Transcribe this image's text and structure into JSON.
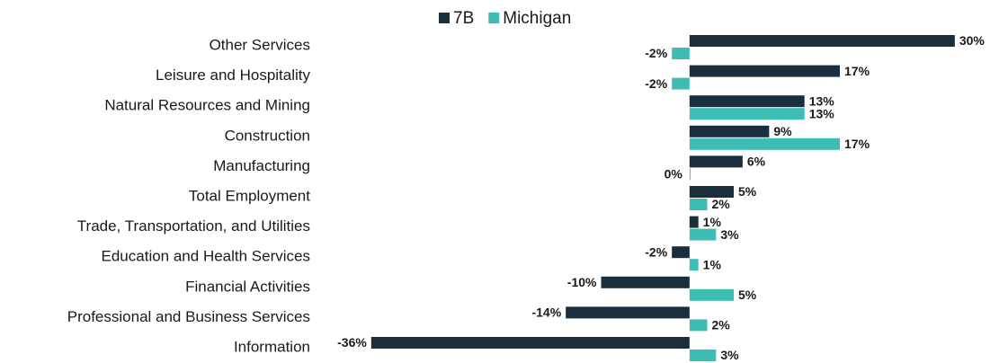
{
  "chart_data": {
    "type": "hbar",
    "categories": [
      "Other Services",
      "Leisure and Hospitality",
      "Natural Resources and Mining",
      "Construction",
      "Manufacturing",
      "Total Employment",
      "Trade, Transportation, and Utilities",
      "Education and Health Services",
      "Financial Activities",
      "Professional and Business Services",
      "Information"
    ],
    "series": [
      {
        "name": "7B",
        "color": "#1b2e3c",
        "values": [
          30,
          17,
          13,
          9,
          6,
          5,
          1,
          -2,
          -10,
          -14,
          -36
        ],
        "value_labels": [
          "30%",
          "17%",
          "13%",
          "9%",
          "6%",
          "5%",
          "1%",
          "-2%",
          "-10%",
          "-14%",
          "-36%"
        ]
      },
      {
        "name": "Michigan",
        "color": "#3dbdb4",
        "values": [
          -2,
          -2,
          13,
          17,
          0,
          2,
          3,
          1,
          5,
          2,
          3
        ],
        "value_labels": [
          "-2%",
          "-2%",
          "13%",
          "17%",
          "0%",
          "2%",
          "3%",
          "1%",
          "5%",
          "2%",
          "3%"
        ]
      }
    ],
    "xlim": [
      -37,
      31
    ],
    "legend": "top"
  }
}
